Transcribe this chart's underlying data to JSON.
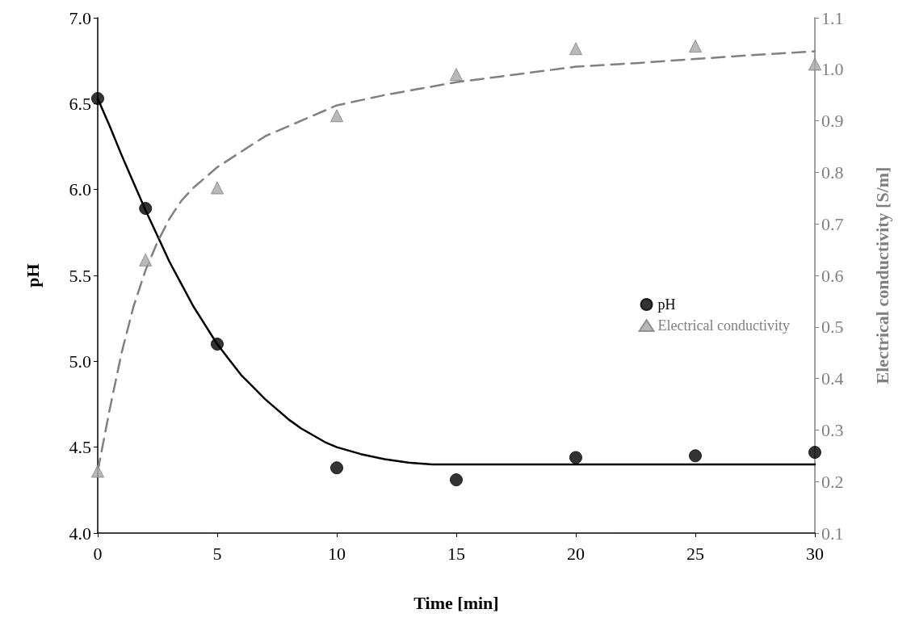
{
  "chart_data": {
    "type": "scatter",
    "xlabel": "Time [min]",
    "ylabel": "pH",
    "y2label": "Electrical conductivity [S/m]",
    "xlim": [
      0,
      30
    ],
    "xticks": [
      0,
      5,
      10,
      15,
      20,
      25,
      30
    ],
    "ylim": [
      4,
      7
    ],
    "yticks": [
      {
        "value": 4,
        "label": "4.0"
      },
      4.5,
      {
        "value": 5,
        "label": "5.0"
      },
      5.5,
      {
        "value": 6,
        "label": "6.0"
      },
      6.5,
      {
        "value": 7,
        "label": "7.0"
      }
    ],
    "y2lim": [
      0.1,
      1.1
    ],
    "y2ticks": [
      0.1,
      0.2,
      0.3,
      0.4,
      0.5,
      0.6,
      0.7,
      0.8,
      0.9,
      {
        "value": 1,
        "label": "1.0"
      },
      1.1
    ],
    "grid": false,
    "legend": "right",
    "series": [
      {
        "type": "line",
        "color": "#000000",
        "marker": "none",
        "line_style": "solid",
        "x": [
          0,
          0.5,
          1,
          1.5,
          2,
          2.5,
          3,
          3.5,
          4,
          4.5,
          5,
          5.5,
          6,
          6.5,
          7,
          7.5,
          8,
          8.5,
          9,
          9.5,
          10,
          11,
          12,
          13,
          14,
          15,
          20,
          25,
          30
        ],
        "values": [
          6.53,
          6.37,
          6.2,
          6.04,
          5.88,
          5.73,
          5.58,
          5.45,
          5.32,
          5.21,
          5.1,
          5.01,
          4.92,
          4.85,
          4.78,
          4.72,
          4.66,
          4.61,
          4.57,
          4.53,
          4.5,
          4.46,
          4.43,
          4.41,
          4.4,
          4.4,
          4.4,
          4.4,
          4.4
        ]
      },
      {
        "type": "line",
        "axis": "y2",
        "color": "#808080",
        "marker": "none",
        "line_style": "dashed",
        "x": [
          0,
          0.5,
          1,
          1.5,
          2,
          2.5,
          3,
          3.5,
          4,
          4.5,
          5,
          6,
          7,
          8,
          9,
          10,
          12,
          15,
          17.5,
          20,
          22.5,
          25,
          27.5,
          30
        ],
        "values": [
          0.22,
          0.34,
          0.45,
          0.54,
          0.61,
          0.665,
          0.71,
          0.745,
          0.77,
          0.79,
          0.81,
          0.84,
          0.87,
          0.89,
          0.91,
          0.93,
          0.95,
          0.975,
          0.99,
          1.005,
          1.012,
          1.02,
          1.028,
          1.035
        ]
      },
      {
        "name": "pH",
        "color": "#000000",
        "marker": "circle",
        "x": [
          0,
          2,
          5,
          10,
          15,
          20,
          25,
          30
        ],
        "values": [
          6.53,
          5.89,
          5.1,
          4.38,
          4.31,
          4.44,
          4.45,
          4.47
        ]
      },
      {
        "name": "Electrical conductivity",
        "axis": "y2",
        "color": "#a6a6a6",
        "marker": "triangle",
        "x": [
          0,
          2,
          5,
          10,
          15,
          20,
          25,
          30
        ],
        "values": [
          0.22,
          0.63,
          0.77,
          0.91,
          0.99,
          1.04,
          1.045,
          1.01
        ]
      }
    ]
  }
}
